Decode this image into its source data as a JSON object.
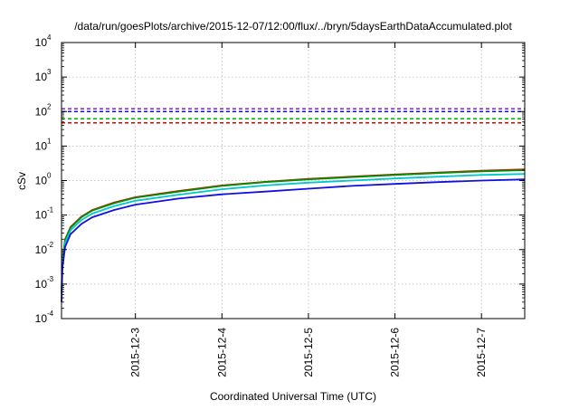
{
  "chart_data": {
    "type": "line",
    "title": "/data/run/goesPlots/archive/2015-12-07/12:00/flux/../bryn/5daysEarthDataAccumulated.plot",
    "xlabel": "Coordinated Universal Time (UTC)",
    "ylabel": "cSv",
    "y_scale": "log",
    "ylim": [
      0.0001,
      10000
    ],
    "y_ticks": [
      {
        "base": "10",
        "exp": "-4",
        "value": 0.0001
      },
      {
        "base": "10",
        "exp": "-3",
        "value": 0.001
      },
      {
        "base": "10",
        "exp": "-2",
        "value": 0.01
      },
      {
        "base": "10",
        "exp": "-1",
        "value": 0.1
      },
      {
        "base": "10",
        "exp": "0",
        "value": 1
      },
      {
        "base": "10",
        "exp": "1",
        "value": 10
      },
      {
        "base": "10",
        "exp": "2",
        "value": 100
      },
      {
        "base": "10",
        "exp": "3",
        "value": 1000
      },
      {
        "base": "10",
        "exp": "4",
        "value": 10000
      }
    ],
    "xlim": [
      "2015-12-02T03:30",
      "2015-12-07T12:00"
    ],
    "x_ticks": [
      "2015-12-3",
      "2015-12-4",
      "2015-12-5",
      "2015-12-6",
      "2015-12-7"
    ],
    "x_tick_dates": [
      "2015-12-03T00:00",
      "2015-12-04T00:00",
      "2015-12-05T00:00",
      "2015-12-06T00:00",
      "2015-12-07T00:00"
    ],
    "grid": true,
    "series": [
      {
        "color": "#e00000",
        "style": "solid",
        "x": [
          "2015-12-02T03:30",
          "2015-12-02T03:45",
          "2015-12-02T04:30",
          "2015-12-02T06:00",
          "2015-12-02T09:00",
          "2015-12-02T12:00",
          "2015-12-02T18:00",
          "2015-12-03T00:00",
          "2015-12-03T12:00",
          "2015-12-04T00:00",
          "2015-12-04T12:00",
          "2015-12-05T00:00",
          "2015-12-05T12:00",
          "2015-12-06T00:00",
          "2015-12-06T12:00",
          "2015-12-07T00:00",
          "2015-12-07T12:00"
        ],
        "y": [
          0.0006,
          0.005,
          0.02,
          0.045,
          0.09,
          0.14,
          0.23,
          0.33,
          0.5,
          0.72,
          0.92,
          1.12,
          1.3,
          1.5,
          1.7,
          1.92,
          2.1
        ]
      },
      {
        "color": "#009000",
        "style": "solid",
        "x": [
          "2015-12-02T03:30",
          "2015-12-02T03:45",
          "2015-12-02T04:30",
          "2015-12-02T06:00",
          "2015-12-02T09:00",
          "2015-12-02T12:00",
          "2015-12-02T18:00",
          "2015-12-03T00:00",
          "2015-12-03T12:00",
          "2015-12-04T00:00",
          "2015-12-04T12:00",
          "2015-12-05T00:00",
          "2015-12-05T12:00",
          "2015-12-06T00:00",
          "2015-12-06T12:00",
          "2015-12-07T00:00",
          "2015-12-07T12:00"
        ],
        "y": [
          0.0006,
          0.0047,
          0.019,
          0.043,
          0.086,
          0.135,
          0.22,
          0.32,
          0.48,
          0.7,
          0.9,
          1.08,
          1.26,
          1.45,
          1.65,
          1.85,
          2.0
        ]
      },
      {
        "color": "#00c8c8",
        "style": "solid",
        "x": [
          "2015-12-02T03:30",
          "2015-12-02T03:45",
          "2015-12-02T04:30",
          "2015-12-02T06:00",
          "2015-12-02T09:00",
          "2015-12-02T12:00",
          "2015-12-02T18:00",
          "2015-12-03T00:00",
          "2015-12-03T12:00",
          "2015-12-04T00:00",
          "2015-12-04T12:00",
          "2015-12-05T00:00",
          "2015-12-05T12:00",
          "2015-12-06T00:00",
          "2015-12-06T12:00",
          "2015-12-07T00:00",
          "2015-12-07T12:00"
        ],
        "y": [
          0.0005,
          0.004,
          0.016,
          0.036,
          0.072,
          0.11,
          0.18,
          0.26,
          0.39,
          0.56,
          0.72,
          0.87,
          1.0,
          1.15,
          1.3,
          1.45,
          1.55
        ]
      },
      {
        "color": "#1010e0",
        "style": "solid",
        "x": [
          "2015-12-02T03:30",
          "2015-12-02T03:45",
          "2015-12-02T04:30",
          "2015-12-02T06:00",
          "2015-12-02T09:00",
          "2015-12-02T12:00",
          "2015-12-02T18:00",
          "2015-12-03T00:00",
          "2015-12-03T12:00",
          "2015-12-04T00:00",
          "2015-12-04T12:00",
          "2015-12-05T00:00",
          "2015-12-05T12:00",
          "2015-12-06T00:00",
          "2015-12-06T12:00",
          "2015-12-07T00:00",
          "2015-12-07T12:00"
        ],
        "y": [
          0.0003,
          0.003,
          0.012,
          0.028,
          0.055,
          0.086,
          0.14,
          0.2,
          0.3,
          0.4,
          0.48,
          0.58,
          0.7,
          0.8,
          0.9,
          1.0,
          1.08
        ]
      },
      {
        "color": "#9a2cd0",
        "style": "dashed",
        "constant": 120
      },
      {
        "color": "#1010e0",
        "style": "dashed",
        "constant": 100
      },
      {
        "color": "#00c000",
        "style": "dashed",
        "constant": 62
      },
      {
        "color": "#e00000",
        "style": "dashed",
        "constant": 47
      }
    ]
  }
}
